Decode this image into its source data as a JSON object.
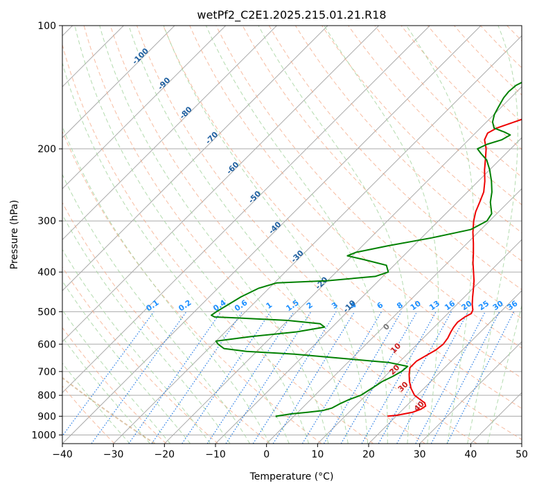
{
  "chart_data": {
    "type": "line",
    "subtype": "skew-t log-p diagram",
    "title": "wetPf2_C2E1.2025.215.01.21.R18",
    "xlabel": "Temperature (°C)",
    "ylabel": "Pressure (hPa)",
    "xlim": [
      -40,
      50
    ],
    "ylim": [
      1050,
      100
    ],
    "y_scale": "log",
    "grid": true,
    "x_ticks": [
      -40,
      -30,
      -20,
      -10,
      0,
      10,
      20,
      30,
      40,
      50
    ],
    "x_tick_labels": [
      "−40",
      "−30",
      "−20",
      "−10",
      "0",
      "10",
      "20",
      "30",
      "40",
      "50"
    ],
    "y_ticks": [
      100,
      200,
      300,
      400,
      500,
      600,
      700,
      800,
      900,
      1000
    ],
    "y_tick_labels": [
      "100",
      "200",
      "300",
      "400",
      "500",
      "600",
      "700",
      "800",
      "900",
      "1000"
    ],
    "colors": {
      "temperature": "#ee0000",
      "dewpoint": "#008000",
      "isotherm": "#aaaaaa",
      "dry_adiabat": "#f4a582",
      "moist_adiabat": "#a6d5a0",
      "mixing_ratio": "#1f77e4",
      "freezing_level": "#c8a070",
      "label_dark_blue": "#2060a0",
      "label_blue": "#1e90ff",
      "label_red": "#cc2020",
      "label_gray": "#777777"
    },
    "series": [
      {
        "key": "temperature",
        "points": [
          [
            18.3,
            900
          ],
          [
            20,
            895
          ],
          [
            22.5,
            880
          ],
          [
            23.5,
            865
          ],
          [
            23.8,
            850
          ],
          [
            23,
            835
          ],
          [
            21.5,
            820
          ],
          [
            19.5,
            800
          ],
          [
            17.5,
            770
          ],
          [
            15.8,
            740
          ],
          [
            14.3,
            710
          ],
          [
            13.2,
            685
          ],
          [
            13.2,
            660
          ],
          [
            14,
            640
          ],
          [
            14.8,
            620
          ],
          [
            15.1,
            600
          ],
          [
            14.8,
            580
          ],
          [
            14.2,
            560
          ],
          [
            13.8,
            545
          ],
          [
            13.6,
            530
          ],
          [
            14,
            515
          ],
          [
            14.6,
            505
          ],
          [
            14.2,
            495
          ],
          [
            13,
            480
          ],
          [
            11.6,
            460
          ],
          [
            10.2,
            440
          ],
          [
            8.7,
            420
          ],
          [
            6.9,
            400
          ],
          [
            5,
            380
          ],
          [
            3.2,
            360
          ],
          [
            1.2,
            340
          ],
          [
            -1,
            320
          ],
          [
            -3.1,
            300
          ],
          [
            -4.5,
            285
          ],
          [
            -5.6,
            270
          ],
          [
            -6.8,
            255
          ],
          [
            -8.7,
            240
          ],
          [
            -11,
            225
          ],
          [
            -12.9,
            212
          ],
          [
            -14.8,
            200
          ],
          [
            -16.9,
            190
          ],
          [
            -17.6,
            183
          ],
          [
            -16.8,
            178
          ],
          [
            -13.8,
            170
          ],
          [
            -10.5,
            160
          ],
          [
            -8.8,
            150
          ],
          [
            -8.5,
            140
          ],
          [
            -9,
            130
          ],
          [
            -9.3,
            125
          ],
          [
            -9.4,
            120
          ],
          [
            -8.7,
            115
          ],
          [
            -7.7,
            110
          ],
          [
            -6.9,
            105
          ],
          [
            -6.2,
            100
          ]
        ]
      },
      {
        "key": "dewpoint",
        "points": [
          [
            -3.2,
            905
          ],
          [
            -3.5,
            900
          ],
          [
            -1,
            888
          ],
          [
            2,
            880
          ],
          [
            4.5,
            872
          ],
          [
            5.8,
            860
          ],
          [
            6.5,
            840
          ],
          [
            7.5,
            820
          ],
          [
            9,
            800
          ],
          [
            9.5,
            780
          ],
          [
            10,
            760
          ],
          [
            10.5,
            740
          ],
          [
            11.5,
            720
          ],
          [
            12.3,
            700
          ],
          [
            12.5,
            680
          ],
          [
            8,
            665
          ],
          [
            -2,
            650
          ],
          [
            -12,
            635
          ],
          [
            -22,
            625
          ],
          [
            -27,
            615
          ],
          [
            -29,
            600
          ],
          [
            -30,
            590
          ],
          [
            -24,
            575
          ],
          [
            -16,
            560
          ],
          [
            -11.5,
            545
          ],
          [
            -13,
            535
          ],
          [
            -20,
            525
          ],
          [
            -30,
            518
          ],
          [
            -35,
            515
          ],
          [
            -36,
            510
          ],
          [
            -35.7,
            500
          ],
          [
            -35,
            485
          ],
          [
            -33.8,
            460
          ],
          [
            -32,
            438
          ],
          [
            -29.5,
            425
          ],
          [
            -20,
            420
          ],
          [
            -11.5,
            410
          ],
          [
            -9.8,
            400
          ],
          [
            -11.5,
            385
          ],
          [
            -17,
            373
          ],
          [
            -21,
            365
          ],
          [
            -20,
            358
          ],
          [
            -15,
            345
          ],
          [
            -8,
            330
          ],
          [
            -2,
            315
          ],
          [
            -0.5,
            300
          ],
          [
            -1,
            288
          ],
          [
            -3.5,
            270
          ],
          [
            -5.2,
            255
          ],
          [
            -7.4,
            240
          ],
          [
            -10,
            225
          ],
          [
            -12.5,
            213
          ],
          [
            -15,
            205
          ],
          [
            -16.5,
            200
          ],
          [
            -15.5,
            195
          ],
          [
            -13.5,
            190
          ],
          [
            -12.8,
            185
          ],
          [
            -14.5,
            182
          ],
          [
            -17.3,
            178
          ],
          [
            -18.8,
            172
          ],
          [
            -19.9,
            165
          ],
          [
            -20.6,
            158
          ],
          [
            -21.4,
            150
          ],
          [
            -21.6,
            145
          ],
          [
            -21.4,
            140
          ],
          [
            -20.2,
            135
          ],
          [
            -18.4,
            130
          ],
          [
            -16.6,
            125
          ],
          [
            -15,
            120
          ],
          [
            -14,
            115
          ],
          [
            -13.2,
            110
          ],
          [
            -12.3,
            105
          ],
          [
            -11.7,
            101
          ],
          [
            -11.6,
            100
          ]
        ]
      }
    ],
    "isotherm_labels": [
      {
        "text": "-100",
        "t": -100,
        "p": 120
      },
      {
        "text": "-90",
        "t": -90,
        "p": 140
      },
      {
        "text": "-80",
        "t": -80,
        "p": 165
      },
      {
        "text": "-70",
        "t": -70,
        "p": 190
      },
      {
        "text": "-60",
        "t": -60,
        "p": 225
      },
      {
        "text": "-50",
        "t": -50,
        "p": 265
      },
      {
        "text": "-40",
        "t": -40,
        "p": 315
      },
      {
        "text": "-30",
        "t": -30,
        "p": 370
      },
      {
        "text": "-20",
        "t": -20,
        "p": 430
      },
      {
        "text": "-10",
        "t": -10,
        "p": 490
      }
    ],
    "mixing_ratio_labels": [
      "0.1",
      "0.2",
      "0.4",
      "0.6",
      "1",
      "1.5",
      "2",
      "3",
      "4",
      "6",
      "8",
      "10",
      "13",
      "16",
      "20",
      "25",
      "30",
      "36"
    ],
    "mixing_ratio_label_pressure": 500,
    "theta_e_labels": [
      {
        "text": "0",
        "t": 23,
        "p": 550
      },
      {
        "text": "10",
        "t": 29,
        "p": 620
      },
      {
        "text": "20",
        "t": 33,
        "p": 700
      },
      {
        "text": "30",
        "t": 38,
        "p": 770
      },
      {
        "text": "40",
        "t": 45,
        "p": 860
      }
    ]
  }
}
